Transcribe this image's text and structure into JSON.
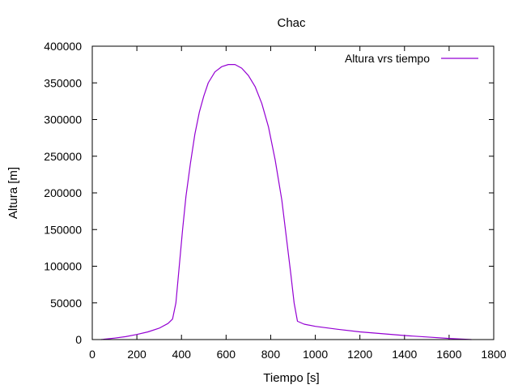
{
  "chart_data": {
    "type": "line",
    "title": "Chac",
    "xlabel": "Tiempo [s]",
    "ylabel": "Altura [m]",
    "xlim": [
      0,
      1800
    ],
    "ylim": [
      0,
      400000
    ],
    "xticks": [
      0,
      200,
      400,
      600,
      800,
      1000,
      1200,
      1400,
      1600,
      1800
    ],
    "yticks": [
      0,
      50000,
      100000,
      150000,
      200000,
      250000,
      300000,
      350000,
      400000
    ],
    "grid": false,
    "legend_position": "top-right",
    "series": [
      {
        "name": "Altura vrs tiempo",
        "color": "#9400d3",
        "points": [
          [
            40,
            0
          ],
          [
            100,
            2000
          ],
          [
            150,
            4000
          ],
          [
            200,
            7000
          ],
          [
            250,
            10500
          ],
          [
            300,
            15500
          ],
          [
            340,
            22000
          ],
          [
            360,
            28000
          ],
          [
            375,
            50000
          ],
          [
            390,
            100000
          ],
          [
            405,
            150000
          ],
          [
            420,
            195000
          ],
          [
            440,
            240000
          ],
          [
            460,
            280000
          ],
          [
            480,
            310000
          ],
          [
            500,
            332000
          ],
          [
            520,
            350000
          ],
          [
            550,
            365000
          ],
          [
            580,
            372000
          ],
          [
            610,
            375000
          ],
          [
            640,
            375000
          ],
          [
            670,
            370000
          ],
          [
            700,
            360000
          ],
          [
            730,
            345000
          ],
          [
            760,
            322000
          ],
          [
            790,
            290000
          ],
          [
            820,
            245000
          ],
          [
            850,
            190000
          ],
          [
            870,
            140000
          ],
          [
            890,
            90000
          ],
          [
            905,
            50000
          ],
          [
            920,
            25000
          ],
          [
            950,
            21000
          ],
          [
            1000,
            18000
          ],
          [
            1100,
            14000
          ],
          [
            1200,
            10500
          ],
          [
            1300,
            8000
          ],
          [
            1400,
            5500
          ],
          [
            1500,
            3500
          ],
          [
            1600,
            1500
          ],
          [
            1700,
            0
          ]
        ]
      }
    ]
  }
}
